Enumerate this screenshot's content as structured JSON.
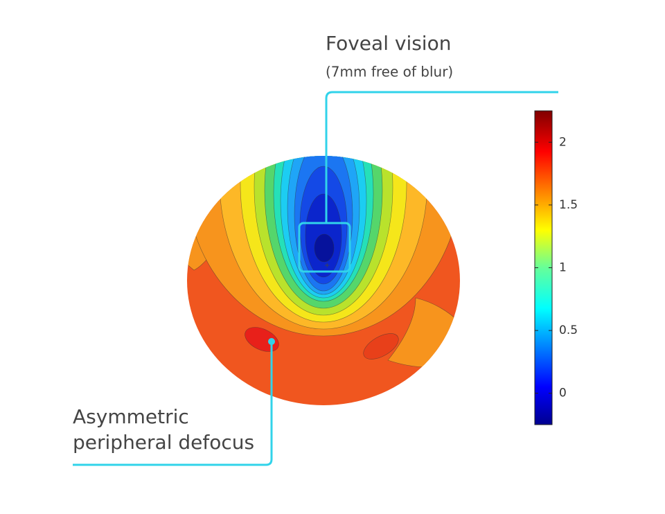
{
  "chart_data": {
    "type": "contour",
    "zlim": [
      -0.25,
      2.25
    ],
    "zticks": [
      0,
      0.5,
      1,
      1.5,
      2
    ],
    "annotations": [
      {
        "lines": [
          "Foveal vision",
          "(7mm free of blur)"
        ]
      },
      {
        "lines": [
          "Asymmetric",
          "peripheral defocus"
        ]
      }
    ]
  }
}
